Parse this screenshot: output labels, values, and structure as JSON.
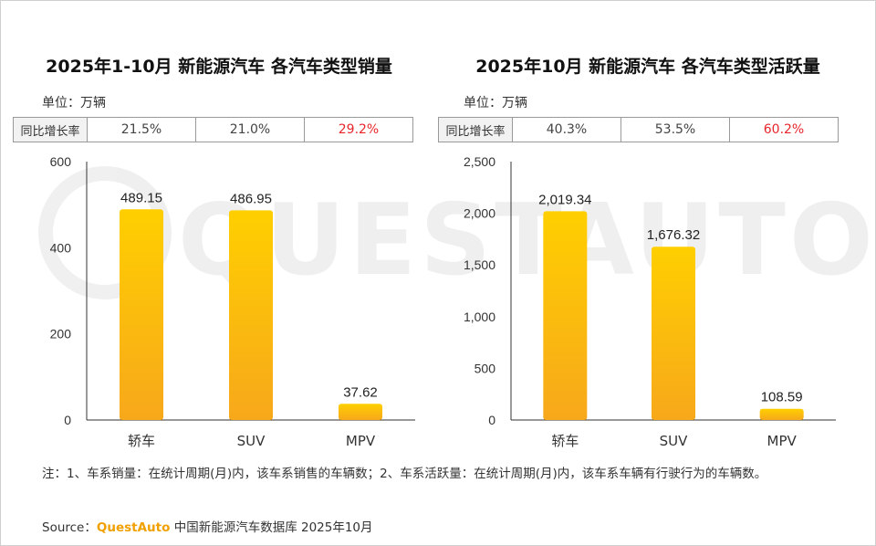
{
  "watermark": {
    "text": "QUESTAUTO"
  },
  "panels": [
    {
      "title": "2025年1-10月 新能源汽车 各汽车类型销量",
      "unit": "单位：万辆",
      "yoy": {
        "label": "同比增长率",
        "values": [
          "21.5%",
          "21.0%",
          "29.2%"
        ]
      }
    },
    {
      "title": "2025年10月 新能源汽车 各汽车类型活跃量",
      "unit": "单位：万辆",
      "yoy": {
        "label": "同比增长率",
        "values": [
          "40.3%",
          "53.5%",
          "60.2%"
        ]
      }
    }
  ],
  "chart_data": [
    {
      "type": "bar",
      "title": "2025年1-10月 新能源汽车 各汽车类型销量",
      "categories": [
        "轿车",
        "SUV",
        "MPV"
      ],
      "values": [
        489.15,
        486.95,
        37.62
      ],
      "value_labels": [
        "489.15",
        "486.95",
        "37.62"
      ],
      "ylim": [
        0,
        600
      ],
      "yticks": [
        0,
        200,
        400,
        600
      ],
      "ytick_labels": [
        "0",
        "200",
        "400",
        "600"
      ],
      "ylabel": "万辆"
    },
    {
      "type": "bar",
      "title": "2025年10月 新能源汽车 各汽车类型活跃量",
      "categories": [
        "轿车",
        "SUV",
        "MPV"
      ],
      "values": [
        2019.34,
        1676.32,
        108.59
      ],
      "value_labels": [
        "2,019.34",
        "1,676.32",
        "108.59"
      ],
      "ylim": [
        0,
        2500
      ],
      "yticks": [
        0,
        500,
        1000,
        1500,
        2000,
        2500
      ],
      "ytick_labels": [
        "0",
        "500",
        "1,000",
        "1,500",
        "2,000",
        "2,500"
      ],
      "ylabel": "万辆"
    }
  ],
  "colors": {
    "bar_top": "#ffcf00",
    "bar_bottom": "#f7a81b",
    "highlight": "#e8262c",
    "brand": "#f0a000"
  },
  "footer": {
    "note": "注：1、车系销量：在统计周期(月)内，该车系销售的车辆数；2、车系活跃量：在统计周期(月)内，该车系车辆有行驶行为的车辆数。",
    "source_prefix": "Source：",
    "source_brand": "QuestAuto",
    "source_suffix": " 中国新能源汽车数据库 2025年10月"
  }
}
